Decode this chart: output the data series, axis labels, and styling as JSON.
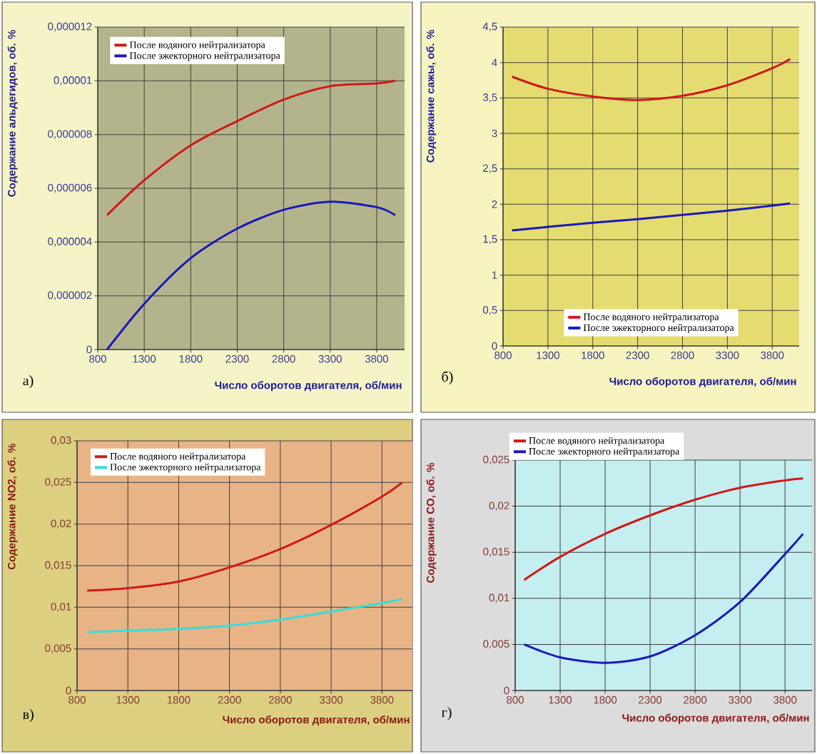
{
  "chart_data": [
    {
      "type": "line",
      "xlabel": "Число оборотов двигателя, об/мин",
      "ylabel": "Содержание альдегидов, об. %",
      "annotations": [
        "а)"
      ],
      "x": [
        900,
        1300,
        1800,
        2300,
        2800,
        3300,
        3800,
        4000
      ],
      "xlim": [
        800,
        4100
      ],
      "xticks": [
        800,
        1300,
        1800,
        2300,
        2800,
        3300,
        3800
      ],
      "ylim": [
        0,
        1.2e-05
      ],
      "yticks": [
        0,
        {
          "value": 2e-06,
          "label": "0,000002"
        },
        {
          "value": 4e-06,
          "label": "0,000004"
        },
        {
          "value": 6e-06,
          "label": "0,000006"
        },
        {
          "value": 8e-06,
          "label": "0,000008"
        },
        {
          "value": 1e-05,
          "label": "0,00001"
        },
        {
          "value": 1.2e-05,
          "label": "0,000012"
        }
      ],
      "grid": true,
      "legend": "top left",
      "series": [
        {
          "name": "После водяного нейтрализатора",
          "color": "#d01818",
          "values": [
            5e-06,
            6.3e-06,
            7.6e-06,
            8.5e-06,
            9.3e-06,
            9.8e-06,
            9.9e-06,
            1e-05
          ]
        },
        {
          "name": "После эжекторного нейтрализатора",
          "color": "#1a1ab8",
          "values": [
            0,
            1.7e-06,
            3.4e-06,
            4.5e-06,
            5.2e-06,
            5.5e-06,
            5.3e-06,
            5e-06
          ]
        }
      ]
    },
    {
      "type": "line",
      "xlabel": "Число оборотов двигателя, об/мин",
      "ylabel": "Содержание сажы, об. %",
      "annotations": [
        "б)"
      ],
      "x": [
        900,
        1300,
        1800,
        2300,
        2800,
        3300,
        3800,
        4000
      ],
      "xlim": [
        800,
        4100
      ],
      "xticks": [
        800,
        1300,
        1800,
        2300,
        2800,
        3300,
        3800
      ],
      "ylim": [
        0,
        4.5
      ],
      "yticks": [
        0,
        {
          "value": 0.5,
          "label": "0,5"
        },
        1,
        {
          "value": 1.5,
          "label": "1,5"
        },
        2,
        {
          "value": 2.5,
          "label": "2,5"
        },
        3,
        {
          "value": 3.5,
          "label": "3,5"
        },
        4,
        {
          "value": 4.5,
          "label": "4,5"
        }
      ],
      "grid": true,
      "legend": "bottom",
      "series": [
        {
          "name": "После водяного нейтрализатора",
          "color": "#d01818",
          "values": [
            3.8,
            3.63,
            3.52,
            3.47,
            3.53,
            3.68,
            3.92,
            4.05
          ]
        },
        {
          "name": "После эжекторного нейтрализатора",
          "color": "#1a1ab8",
          "values": [
            1.63,
            1.68,
            1.74,
            1.79,
            1.85,
            1.91,
            1.98,
            2.01
          ]
        }
      ]
    },
    {
      "type": "line",
      "xlabel": "Число оборотов двигателя, об/мин",
      "ylabel": "Содержание NO2, об. %",
      "annotations": [
        "в)"
      ],
      "x": [
        900,
        1300,
        1800,
        2300,
        2800,
        3300,
        3800,
        4000
      ],
      "xlim": [
        800,
        4100
      ],
      "xticks": [
        800,
        1300,
        1800,
        2300,
        2800,
        3300,
        3800
      ],
      "ylim": [
        0,
        0.03
      ],
      "yticks": [
        0,
        {
          "value": 0.005,
          "label": "0,005"
        },
        {
          "value": 0.01,
          "label": "0,01"
        },
        {
          "value": 0.015,
          "label": "0,015"
        },
        {
          "value": 0.02,
          "label": "0,02"
        },
        {
          "value": 0.025,
          "label": "0,025"
        },
        {
          "value": 0.03,
          "label": "0,03"
        }
      ],
      "grid": true,
      "legend": "top left",
      "series": [
        {
          "name": "После водяного нейтрализатора",
          "color": "#d01818",
          "values": [
            0.012,
            0.0123,
            0.0131,
            0.0148,
            0.017,
            0.0199,
            0.0233,
            0.025
          ]
        },
        {
          "name": "После эжекторного нейтрализатора",
          "color": "#38dcd8",
          "values": [
            0.007,
            0.0072,
            0.0074,
            0.0078,
            0.0085,
            0.0095,
            0.0105,
            0.011
          ]
        }
      ]
    },
    {
      "type": "line",
      "xlabel": "Число оборотов двигателя, об/мин",
      "ylabel": "Содержание CO, об. %",
      "annotations": [
        "г)"
      ],
      "x": [
        900,
        1300,
        1800,
        2300,
        2800,
        3300,
        3800,
        4000
      ],
      "xlim": [
        800,
        4100
      ],
      "xticks": [
        800,
        1300,
        1800,
        2300,
        2800,
        3300,
        3800
      ],
      "ylim": [
        0,
        0.025
      ],
      "yticks": [
        0,
        {
          "value": 0.005,
          "label": "0,005"
        },
        {
          "value": 0.01,
          "label": "0,01"
        },
        {
          "value": 0.015,
          "label": "0,015"
        },
        {
          "value": 0.02,
          "label": "0,02"
        },
        {
          "value": 0.025,
          "label": "0,025"
        }
      ],
      "grid": true,
      "legend": "top",
      "series": [
        {
          "name": "После водяного нейтрализатора",
          "color": "#d01818",
          "values": [
            0.012,
            0.0145,
            0.017,
            0.019,
            0.0207,
            0.022,
            0.0228,
            0.023
          ]
        },
        {
          "name": "После эжекторного нейтрализатора",
          "color": "#1a1ab8",
          "values": [
            0.005,
            0.0036,
            0.003,
            0.0037,
            0.006,
            0.0096,
            0.0148,
            0.017
          ]
        }
      ]
    }
  ]
}
